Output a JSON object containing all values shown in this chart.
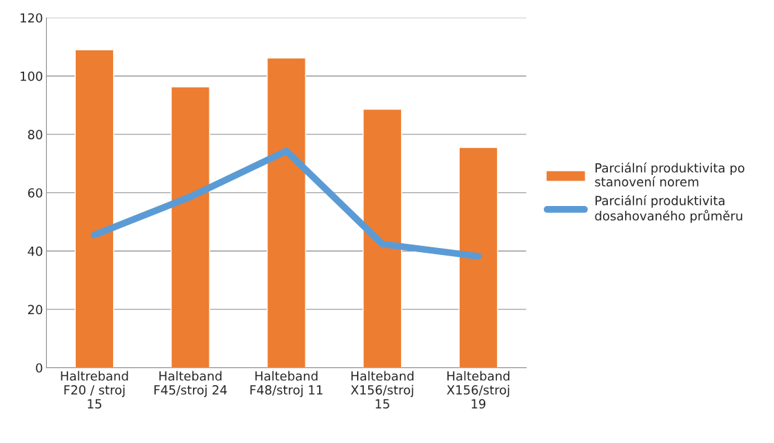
{
  "chart_data": {
    "type": "bar",
    "categories": [
      "Haltreband\nF20 / stroj\n15",
      "Halteband\nF45/stroj 24",
      "Halteband\nF48/stroj 11",
      "Halteband\nX156/stroj\n15",
      "Halteband\nX156/stroj\n19"
    ],
    "series": [
      {
        "name": "Parciální produktivita po\nstanovení norem",
        "color": "#ed7d31",
        "values": [
          109,
          96.3,
          106.2,
          88.6,
          75.5
        ]
      },
      {
        "name": "Parciální produktivita\ndosahovaného průměru",
        "type": "line",
        "color": "#5b9bd5",
        "values": [
          45.5,
          58.6,
          74.3,
          42.4,
          38.2
        ]
      }
    ],
    "ylim": [
      0,
      120
    ],
    "yticks": [
      0,
      20,
      40,
      60,
      80,
      100,
      120
    ],
    "grid": "y",
    "legend": "right"
  }
}
